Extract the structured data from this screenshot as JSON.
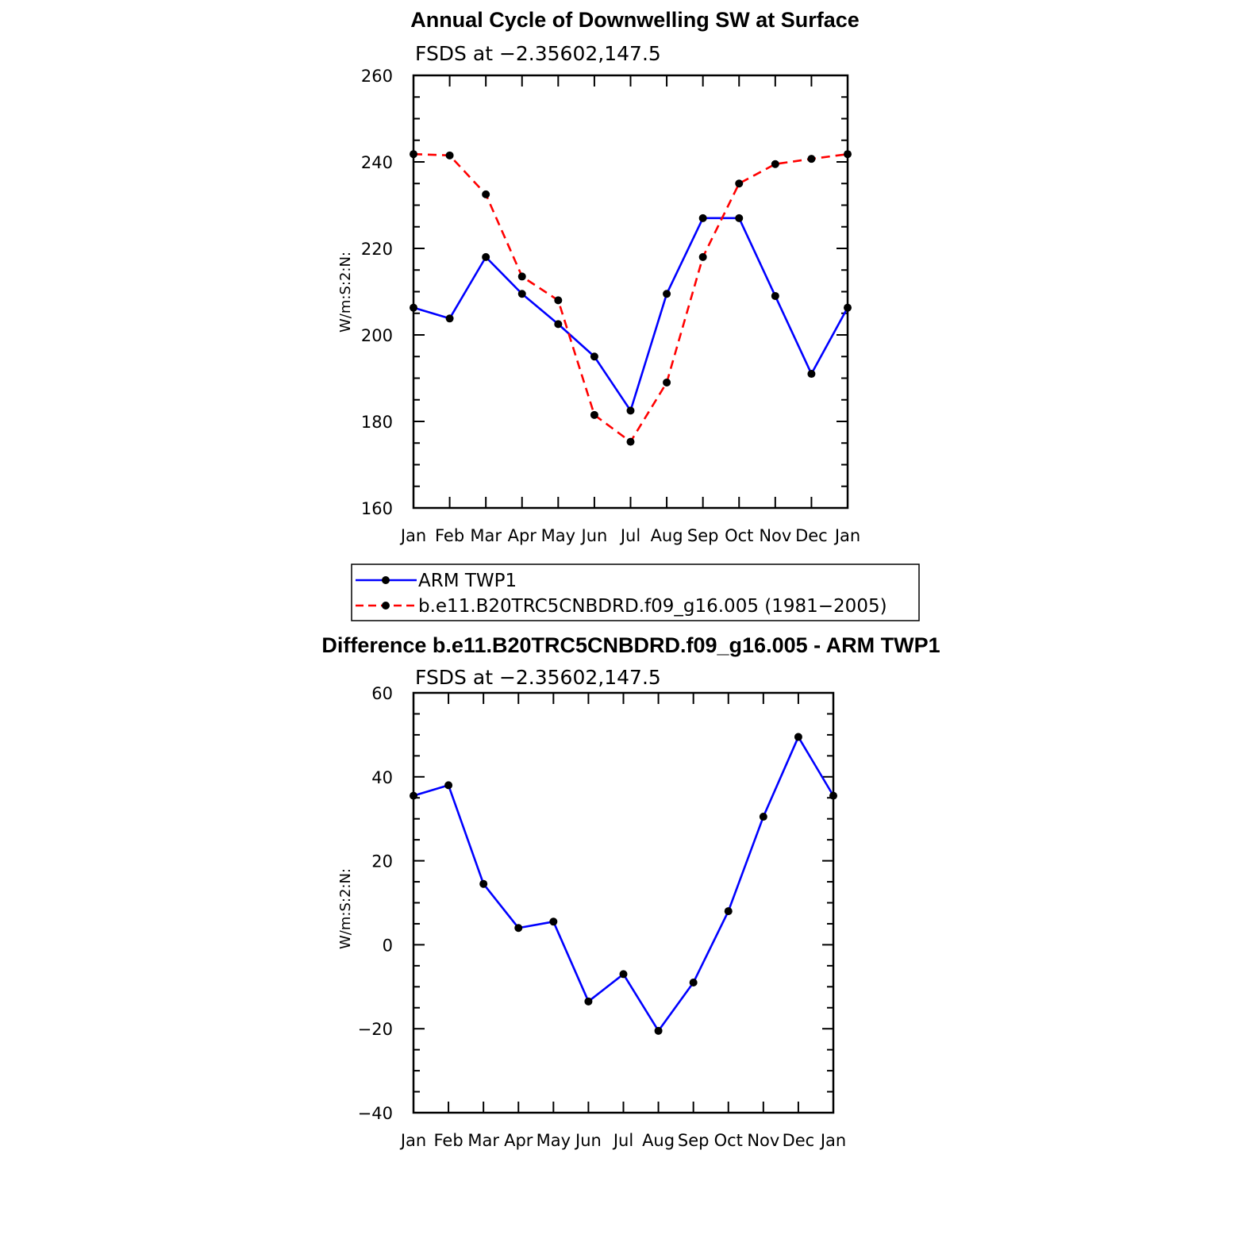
{
  "chart_data": [
    {
      "type": "line",
      "title": "Annual Cycle of Downwelling SW at Surface",
      "subtitle": "FSDS at −2.35602,147.5",
      "ylabel": "W/m:S:2:N:",
      "xlabel": "",
      "categories": [
        "Jan",
        "Feb",
        "Mar",
        "Apr",
        "May",
        "Jun",
        "Jul",
        "Aug",
        "Sep",
        "Oct",
        "Nov",
        "Dec",
        "Jan"
      ],
      "ylim": [
        160,
        260
      ],
      "yticks": [
        160,
        180,
        200,
        220,
        240,
        260
      ],
      "grid": false,
      "legend_position": "bottom",
      "series": [
        {
          "name": "ARM TWP1",
          "color": "#0000ff",
          "dash": "solid",
          "values": [
            206.3,
            203.8,
            218.0,
            209.5,
            202.5,
            195.0,
            182.5,
            209.5,
            227.0,
            227.0,
            209.0,
            191.0,
            206.3
          ]
        },
        {
          "name": "b.e11.B20TRC5CNBDRD.f09_g16.005 (1981−2005)",
          "color": "#ff0000",
          "dash": "dashed",
          "values": [
            241.8,
            241.5,
            232.5,
            213.5,
            208.0,
            181.5,
            175.3,
            189.0,
            218.0,
            235.0,
            239.5,
            240.7,
            241.8
          ]
        }
      ]
    },
    {
      "type": "line",
      "title": "Difference b.e11.B20TRC5CNBDRD.f09_g16.005 - ARM TWP1",
      "subtitle": "FSDS at −2.35602,147.5",
      "ylabel": "W/m:S:2:N:",
      "xlabel": "",
      "categories": [
        "Jan",
        "Feb",
        "Mar",
        "Apr",
        "May",
        "Jun",
        "Jul",
        "Aug",
        "Sep",
        "Oct",
        "Nov",
        "Dec",
        "Jan"
      ],
      "ylim": [
        -40,
        60
      ],
      "yticks": [
        -40,
        -20,
        0,
        20,
        40,
        60
      ],
      "grid": false,
      "series": [
        {
          "color": "#0000ff",
          "dash": "solid",
          "values": [
            35.5,
            38.0,
            14.5,
            4.0,
            5.5,
            -13.5,
            -7.0,
            -20.5,
            -9.0,
            8.0,
            30.5,
            49.5,
            35.5
          ]
        }
      ]
    }
  ]
}
